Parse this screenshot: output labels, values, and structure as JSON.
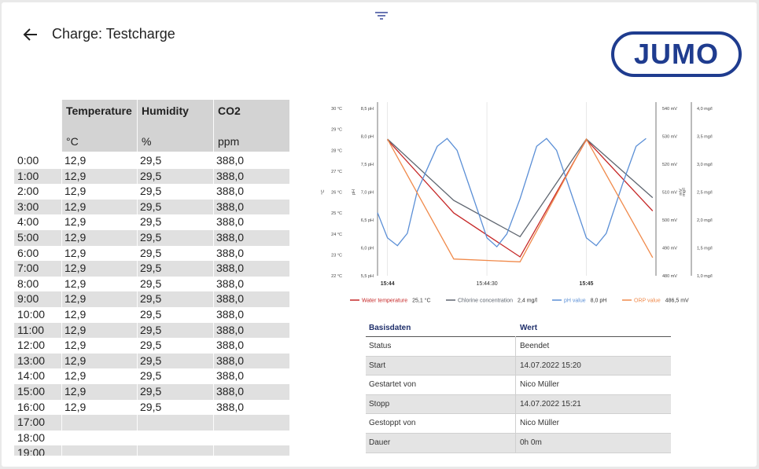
{
  "header": {
    "title": "Charge: Testcharge",
    "logo": "JUMO"
  },
  "table": {
    "columns": [
      {
        "name": "Temperature",
        "unit": "°C"
      },
      {
        "name": "Humidity",
        "unit": "%"
      },
      {
        "name": "CO2",
        "unit": "ppm"
      }
    ],
    "rows": [
      {
        "time": "0:00",
        "cells": [
          "12,9",
          "29,5",
          "388,0"
        ]
      },
      {
        "time": "1:00",
        "cells": [
          "12,9",
          "29,5",
          "388,0"
        ]
      },
      {
        "time": "2:00",
        "cells": [
          "12,9",
          "29,5",
          "388,0"
        ]
      },
      {
        "time": "3:00",
        "cells": [
          "12,9",
          "29,5",
          "388,0"
        ]
      },
      {
        "time": "4:00",
        "cells": [
          "12,9",
          "29,5",
          "388,0"
        ]
      },
      {
        "time": "5:00",
        "cells": [
          "12,9",
          "29,5",
          "388,0"
        ]
      },
      {
        "time": "6:00",
        "cells": [
          "12,9",
          "29,5",
          "388,0"
        ]
      },
      {
        "time": "7:00",
        "cells": [
          "12,9",
          "29,5",
          "388,0"
        ]
      },
      {
        "time": "8:00",
        "cells": [
          "12,9",
          "29,5",
          "388,0"
        ]
      },
      {
        "time": "9:00",
        "cells": [
          "12,9",
          "29,5",
          "388,0"
        ]
      },
      {
        "time": "10:00",
        "cells": [
          "12,9",
          "29,5",
          "388,0"
        ]
      },
      {
        "time": "11:00",
        "cells": [
          "12,9",
          "29,5",
          "388,0"
        ]
      },
      {
        "time": "12:00",
        "cells": [
          "12,9",
          "29,5",
          "388,0"
        ]
      },
      {
        "time": "13:00",
        "cells": [
          "12,9",
          "29,5",
          "388,0"
        ]
      },
      {
        "time": "14:00",
        "cells": [
          "12,9",
          "29,5",
          "388,0"
        ]
      },
      {
        "time": "15:00",
        "cells": [
          "12,9",
          "29,5",
          "388,0"
        ]
      },
      {
        "time": "16:00",
        "cells": [
          "12,9",
          "29,5",
          "388,0"
        ]
      },
      {
        "time": "17:00"
      },
      {
        "time": "18:00"
      },
      {
        "time": "19:00"
      }
    ]
  },
  "chart_data": {
    "type": "line",
    "xlim": [
      "15:43:57",
      "15:45:21"
    ],
    "xticks": [
      "15:44",
      "15:44:30",
      "15:45"
    ],
    "grid": true,
    "axes": [
      {
        "label": "°C",
        "ylim": [
          22,
          30
        ],
        "yticks": [
          {
            "value": 22,
            "label": "22 °C"
          },
          {
            "value": 23,
            "label": "23 °C"
          },
          {
            "value": 24,
            "label": "24 °C"
          },
          {
            "value": 25,
            "label": "25 °C"
          },
          {
            "value": 26,
            "label": "26 °C"
          },
          {
            "value": 27,
            "label": "27 °C"
          },
          {
            "value": 28,
            "label": "28 °C"
          },
          {
            "value": 29,
            "label": "29 °C"
          },
          {
            "value": 30,
            "label": "30 °C"
          }
        ]
      },
      {
        "label": "pH",
        "ylim": [
          5.5,
          8.5
        ],
        "yticks": [
          {
            "value": 5.5,
            "label": "5,5 pH"
          },
          {
            "value": 6,
            "label": "6,0 pH"
          },
          {
            "value": 6.5,
            "label": "6,5 pH"
          },
          {
            "value": 7,
            "label": "7,0 pH"
          },
          {
            "value": 7.5,
            "label": "7,5 pH"
          },
          {
            "value": 8,
            "label": "8,0 pH"
          },
          {
            "value": 8.5,
            "label": "8,5 pH"
          }
        ]
      },
      {
        "label": "mV",
        "ylim": [
          480,
          540
        ],
        "yticks": [
          {
            "value": 480,
            "label": "480 mV"
          },
          {
            "value": 490,
            "label": "490 mV"
          },
          {
            "value": 500,
            "label": "500 mV"
          },
          {
            "value": 510,
            "label": "510 mV"
          },
          {
            "value": 520,
            "label": "520 mV"
          },
          {
            "value": 530,
            "label": "530 mV"
          },
          {
            "value": 540,
            "label": "540 mV"
          }
        ]
      },
      {
        "label": "mg/l",
        "ylim": [
          1,
          4
        ],
        "yticks": [
          {
            "value": 1,
            "label": "1,0 mg/l"
          },
          {
            "value": 1.5,
            "label": "1,5 mg/l"
          },
          {
            "value": 2,
            "label": "2,0 mg/l"
          },
          {
            "value": 2.5,
            "label": "2,5 mg/l"
          },
          {
            "value": 3,
            "label": "3,0 mg/l"
          },
          {
            "value": 3.5,
            "label": "3,5 mg/l"
          },
          {
            "value": 4,
            "label": "4,0 mg/l"
          }
        ]
      }
    ],
    "series": [
      {
        "name": "Water temperature",
        "current": "25,1 °C",
        "color": "#c62828",
        "axis": 0,
        "x": [
          "15:44:00",
          "15:44:20",
          "15:44:40",
          "15:45:00",
          "15:45:20"
        ],
        "values": [
          28.5,
          25,
          22.9,
          28.5,
          25.1
        ]
      },
      {
        "name": "Chlorine concentration",
        "current": "2,4 mg/l",
        "color": "#5f6670",
        "axis": 3,
        "x": [
          "15:44:00",
          "15:44:20",
          "15:44:40",
          "15:45:00",
          "15:45:20"
        ],
        "values": [
          3.45,
          2.35,
          1.7,
          3.45,
          2.4
        ]
      },
      {
        "name": "pH value",
        "current": "8,0 pH",
        "color": "#5b8fd6",
        "axis": 1,
        "x": [
          "15:43:57",
          "15:44:00",
          "15:44:03",
          "15:44:06",
          "15:44:09",
          "15:44:15",
          "15:44:18",
          "15:44:21",
          "15:44:26",
          "15:44:30",
          "15:44:33",
          "15:44:36",
          "15:44:40",
          "15:44:45",
          "15:44:48",
          "15:44:51",
          "15:44:56",
          "15:45:00",
          "15:45:03",
          "15:45:06",
          "15:45:11",
          "15:45:15",
          "15:45:18"
        ],
        "values": [
          6.63,
          6.18,
          6.04,
          6.26,
          7.02,
          7.82,
          7.96,
          7.75,
          6.88,
          6.18,
          6.02,
          6.25,
          6.88,
          7.82,
          7.96,
          7.75,
          6.88,
          6.18,
          6.04,
          6.26,
          7.16,
          7.82,
          7.96
        ]
      },
      {
        "name": "ORP value",
        "current": "486,5 mV",
        "color": "#f08a4b",
        "axis": 2,
        "x": [
          "15:44:00",
          "15:44:20",
          "15:44:40",
          "15:45:00",
          "15:45:20"
        ],
        "values": [
          529,
          486,
          485,
          529,
          486.5
        ]
      }
    ]
  },
  "basisdaten": {
    "header": [
      "Basisdaten",
      "Wert"
    ],
    "rows": [
      [
        "Status",
        "Beendet"
      ],
      [
        "Start",
        "14.07.2022 15:20"
      ],
      [
        "Gestartet von",
        "Nico Müller"
      ],
      [
        "Stopp",
        "14.07.2022 15:21"
      ],
      [
        "Gestoppt von",
        "Nico Müller"
      ],
      [
        "Dauer",
        "0h 0m"
      ]
    ]
  }
}
